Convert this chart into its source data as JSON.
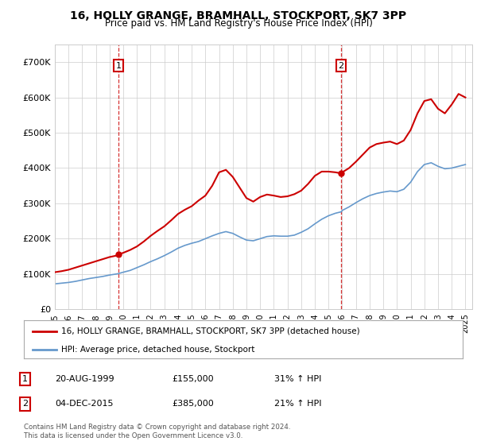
{
  "title": "16, HOLLY GRANGE, BRAMHALL, STOCKPORT, SK7 3PP",
  "subtitle": "Price paid vs. HM Land Registry's House Price Index (HPI)",
  "ylim": [
    0,
    750000
  ],
  "yticks": [
    0,
    100000,
    200000,
    300000,
    400000,
    500000,
    600000,
    700000
  ],
  "ytick_labels": [
    "£0",
    "£100K",
    "£200K",
    "£300K",
    "£400K",
    "£500K",
    "£600K",
    "£700K"
  ],
  "sale1": {
    "date_x": 1999.64,
    "price": 155000,
    "label": "1"
  },
  "sale2": {
    "date_x": 2015.92,
    "price": 385000,
    "label": "2"
  },
  "legend_line1": "16, HOLLY GRANGE, BRAMHALL, STOCKPORT, SK7 3PP (detached house)",
  "legend_line2": "HPI: Average price, detached house, Stockport",
  "table_rows": [
    [
      "1",
      "20-AUG-1999",
      "£155,000",
      "31% ↑ HPI"
    ],
    [
      "2",
      "04-DEC-2015",
      "£385,000",
      "21% ↑ HPI"
    ]
  ],
  "footnote": "Contains HM Land Registry data © Crown copyright and database right 2024.\nThis data is licensed under the Open Government Licence v3.0.",
  "line_color_sale": "#cc0000",
  "line_color_hpi": "#6699cc",
  "background_color": "#ffffff",
  "grid_color": "#cccccc",
  "hpi_data_x": [
    1995.0,
    1995.5,
    1996.0,
    1996.5,
    1997.0,
    1997.5,
    1998.0,
    1998.5,
    1999.0,
    1999.5,
    1999.64,
    2000.0,
    2000.5,
    2001.0,
    2001.5,
    2002.0,
    2002.5,
    2003.0,
    2003.5,
    2004.0,
    2004.5,
    2005.0,
    2005.5,
    2006.0,
    2006.5,
    2007.0,
    2007.5,
    2008.0,
    2008.5,
    2009.0,
    2009.5,
    2010.0,
    2010.5,
    2011.0,
    2011.5,
    2012.0,
    2012.5,
    2013.0,
    2013.5,
    2014.0,
    2014.5,
    2015.0,
    2015.5,
    2015.92,
    2016.0,
    2016.5,
    2017.0,
    2017.5,
    2018.0,
    2018.5,
    2019.0,
    2019.5,
    2020.0,
    2020.5,
    2021.0,
    2021.5,
    2022.0,
    2022.5,
    2023.0,
    2023.5,
    2024.0,
    2024.5,
    2025.0
  ],
  "hpi_data_y": [
    72000,
    74000,
    76000,
    79000,
    83000,
    87000,
    90000,
    93000,
    97000,
    100000,
    101000,
    105000,
    110000,
    118000,
    126000,
    135000,
    143000,
    152000,
    162000,
    173000,
    181000,
    187000,
    192000,
    200000,
    208000,
    215000,
    220000,
    215000,
    205000,
    196000,
    194000,
    200000,
    206000,
    208000,
    207000,
    207000,
    210000,
    218000,
    228000,
    242000,
    255000,
    265000,
    272000,
    276000,
    280000,
    290000,
    302000,
    313000,
    322000,
    328000,
    332000,
    335000,
    333000,
    340000,
    360000,
    390000,
    410000,
    415000,
    405000,
    398000,
    400000,
    405000,
    410000
  ],
  "sale_data_x": [
    1995.0,
    1995.5,
    1996.0,
    1996.5,
    1997.0,
    1997.5,
    1998.0,
    1998.5,
    1999.0,
    1999.5,
    1999.64,
    2000.0,
    2000.5,
    2001.0,
    2001.5,
    2002.0,
    2002.5,
    2003.0,
    2003.5,
    2004.0,
    2004.5,
    2005.0,
    2005.5,
    2006.0,
    2006.5,
    2007.0,
    2007.5,
    2008.0,
    2008.5,
    2009.0,
    2009.5,
    2010.0,
    2010.5,
    2011.0,
    2011.5,
    2012.0,
    2012.5,
    2013.0,
    2013.5,
    2014.0,
    2014.5,
    2015.0,
    2015.5,
    2015.92,
    2016.0,
    2016.5,
    2017.0,
    2017.5,
    2018.0,
    2018.5,
    2019.0,
    2019.5,
    2020.0,
    2020.5,
    2021.0,
    2021.5,
    2022.0,
    2022.5,
    2023.0,
    2023.5,
    2024.0,
    2024.5,
    2025.0
  ],
  "sale_data_y": [
    105000,
    108000,
    112000,
    118000,
    124000,
    130000,
    136000,
    142000,
    148000,
    152000,
    155000,
    160000,
    168000,
    178000,
    192000,
    208000,
    222000,
    235000,
    252000,
    270000,
    282000,
    292000,
    308000,
    322000,
    350000,
    388000,
    395000,
    375000,
    345000,
    315000,
    305000,
    318000,
    325000,
    322000,
    318000,
    320000,
    326000,
    336000,
    355000,
    378000,
    390000,
    390000,
    388000,
    385000,
    388000,
    400000,
    418000,
    438000,
    458000,
    468000,
    472000,
    475000,
    468000,
    478000,
    508000,
    555000,
    590000,
    595000,
    568000,
    555000,
    580000,
    610000,
    600000
  ],
  "xmin": 1995,
  "xmax": 2025.5,
  "xticks": [
    1995,
    1996,
    1997,
    1998,
    1999,
    2000,
    2001,
    2002,
    2003,
    2004,
    2005,
    2006,
    2007,
    2008,
    2009,
    2010,
    2011,
    2012,
    2013,
    2014,
    2015,
    2016,
    2017,
    2018,
    2019,
    2020,
    2021,
    2022,
    2023,
    2024,
    2025
  ]
}
